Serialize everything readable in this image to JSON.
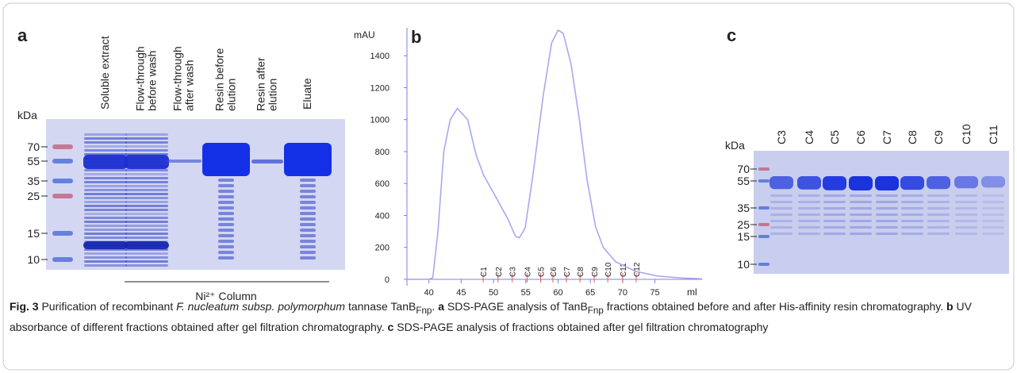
{
  "panel_a": {
    "label": "a",
    "kda_label": "kDa",
    "markers": [
      70,
      55,
      35,
      25,
      15,
      10
    ],
    "lanes": [
      [
        "Soluble extract"
      ],
      [
        "Flow-through",
        "before wash"
      ],
      [
        "Flow-through",
        "after wash"
      ],
      [
        "Resin before",
        "elution"
      ],
      [
        "Resin after",
        "elution"
      ],
      [
        "Eluate"
      ]
    ],
    "column_label": "Ni²⁺ Column"
  },
  "chart_data": {
    "type": "line",
    "panel_label": "b",
    "y_label": "mAU",
    "x_label": "ml",
    "x": [
      36.6,
      38,
      40,
      40.6,
      41.4,
      42.3,
      43.3,
      44.4,
      46,
      47.3,
      48.5,
      50.3,
      52.2,
      53.4,
      54,
      54.9,
      56.1,
      57.7,
      59,
      60,
      60.8,
      62,
      63.3,
      64.5,
      65.8,
      67,
      68.9,
      72,
      75.5,
      79.2,
      82.3
    ],
    "values": [
      0,
      0,
      0,
      10,
      300,
      800,
      1000,
      1070,
      1000,
      780,
      650,
      520,
      380,
      270,
      260,
      320,
      650,
      1150,
      1480,
      1560,
      1540,
      1350,
      1000,
      620,
      330,
      200,
      110,
      50,
      20,
      8,
      3
    ],
    "color": "#a9a8ee",
    "xlim": [
      36.6,
      82.3
    ],
    "ylim": [
      -40,
      1575
    ],
    "xticks": [
      40,
      45,
      50,
      55,
      60,
      65,
      70,
      75
    ],
    "yticks": [
      0,
      200,
      400,
      600,
      800,
      1000,
      1200,
      1400
    ],
    "fractions": {
      "labels": [
        "C1",
        "C2",
        "C3",
        "C4",
        "C5",
        "C6",
        "C7",
        "C8",
        "C9",
        "C10",
        "C11",
        "C12"
      ],
      "x": [
        48.4,
        50.7,
        52.9,
        55.2,
        57.3,
        59.2,
        61.3,
        63.4,
        65.6,
        67.7,
        70.0,
        72.1
      ]
    },
    "fraction_color": "#e06060"
  },
  "panel_c": {
    "label": "c",
    "kda_label": "kDa",
    "markers": [
      70,
      55,
      35,
      25,
      15,
      10
    ],
    "lanes": [
      "C3",
      "C4",
      "C5",
      "C6",
      "C7",
      "C8",
      "C9",
      "C10",
      "C11"
    ]
  },
  "caption": [
    "Fig. 3",
    " Purification of recombinant ",
    "F. nucleatum subsp. polymorphum",
    " tannase TanB",
    "Fnp",
    ". ",
    "a",
    " SDS-PAGE analysis of TanB",
    "Fnp",
    " fractions obtained before and after His-affinity resin chromatography. ",
    "b",
    " UV absorbance of different fractions obtained after gel filtration chromatography. ",
    "c",
    " SDS-PAGE analysis of fractions obtained after gel filtration chromatography"
  ]
}
